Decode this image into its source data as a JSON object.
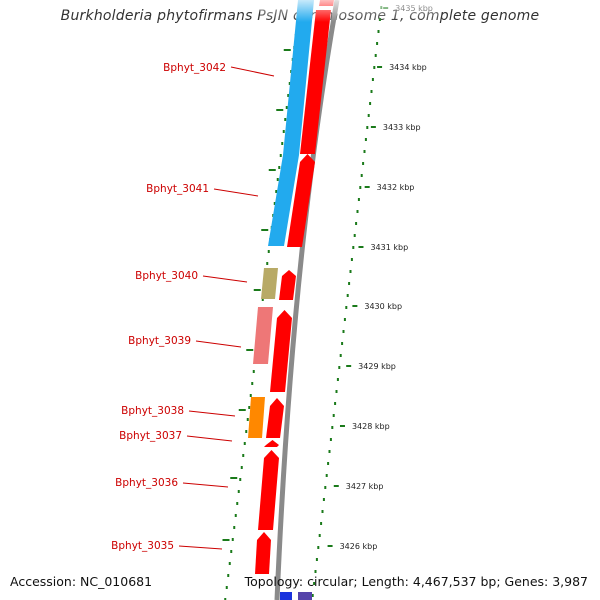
{
  "title": "Burkholderia phytofirmans PsJN chromosome 1, complete genome",
  "footer": {
    "accession": "Accession: NC_010681",
    "summary": "Topology: circular; Length: 4,467,537 bp; Genes: 3,987"
  },
  "colors": {
    "forward_strand": "#ff0000",
    "backbone": "#8a8a8a",
    "gene_label": "#cc0000",
    "gc_skew_dots": "#1a7a1a"
  },
  "scale_ticks": [
    {
      "label": "3435 kbp",
      "kbp": 3435
    },
    {
      "label": "3434 kbp",
      "kbp": 3434
    },
    {
      "label": "3433 kbp",
      "kbp": 3433
    },
    {
      "label": "3432 kbp",
      "kbp": 3432
    },
    {
      "label": "3431 kbp",
      "kbp": 3431
    },
    {
      "label": "3430 kbp",
      "kbp": 3430
    },
    {
      "label": "3429 kbp",
      "kbp": 3429
    },
    {
      "label": "3428 kbp",
      "kbp": 3428
    },
    {
      "label": "3427 kbp",
      "kbp": 3427
    },
    {
      "label": "3426 kbp",
      "kbp": 3426
    }
  ],
  "genes": [
    {
      "name": "Bphyt_3042",
      "cog_color": "#22aaee"
    },
    {
      "name": "Bphyt_3041",
      "cog_color": "#22aaee"
    },
    {
      "name": "Bphyt_3040",
      "cog_color": "#b8aa66"
    },
    {
      "name": "Bphyt_3039",
      "cog_color": "#ee7777"
    },
    {
      "name": "Bphyt_3038",
      "cog_color": "#ff8800"
    },
    {
      "name": "Bphyt_3037",
      "cog_color": ""
    },
    {
      "name": "Bphyt_3036",
      "cog_color": ""
    },
    {
      "name": "Bphyt_3035",
      "cog_color": ""
    }
  ]
}
